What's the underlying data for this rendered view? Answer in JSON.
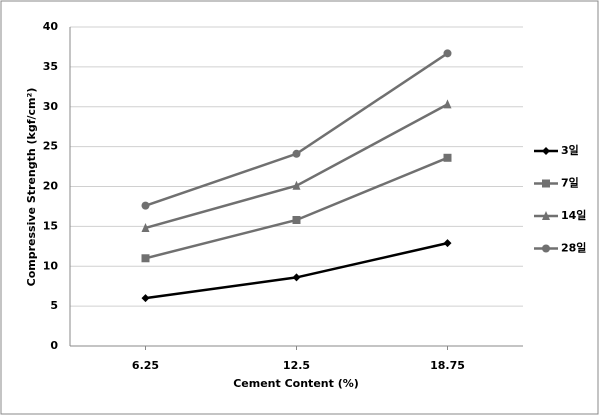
{
  "chart_data": {
    "type": "line",
    "y_label": "Compressive Strength (kgf/cm²)",
    "x_label": "Cement Content (%)",
    "categories": [
      "6.25",
      "12.5",
      "18.75"
    ],
    "series": [
      {
        "name": "3일",
        "color": "#000000",
        "marker": "diamond",
        "values": [
          6,
          8.6,
          12.9
        ]
      },
      {
        "name": "7일",
        "color": "#707070",
        "marker": "square",
        "values": [
          11,
          15.8,
          23.6
        ]
      },
      {
        "name": "14일",
        "color": "#707070",
        "marker": "triangle",
        "values": [
          14.8,
          20.1,
          30.3
        ]
      },
      {
        "name": "28일",
        "color": "#707070",
        "marker": "circle",
        "values": [
          17.6,
          24.1,
          36.7
        ]
      }
    ],
    "ylim": [
      0,
      40
    ],
    "yticks": [
      0,
      5,
      10,
      15,
      20,
      25,
      30,
      35,
      40
    ],
    "grid": true
  }
}
